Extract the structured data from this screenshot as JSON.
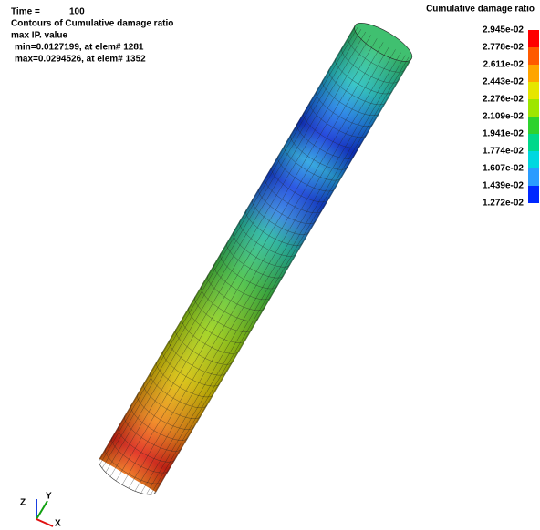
{
  "header": {
    "time_label": "Time =",
    "time_value": "100",
    "lines": [
      "Contours of Cumulative damage ratio",
      "max IP. value",
      "min=0.0127199, at elem# 1281",
      "max=0.0294526, at elem# 1352"
    ]
  },
  "legend": {
    "title": "Cumulative damage ratio",
    "labels": [
      "2.945e-02",
      "2.778e-02",
      "2.611e-02",
      "2.443e-02",
      "2.276e-02",
      "2.109e-02",
      "1.941e-02",
      "1.774e-02",
      "1.607e-02",
      "1.439e-02",
      "1.272e-02"
    ],
    "colors": [
      "#ff0000",
      "#ff5a00",
      "#ffa500",
      "#e6e600",
      "#9ee600",
      "#2ed22e",
      "#00d88a",
      "#00d8e0",
      "#2a9cff",
      "#0028ff"
    ]
  },
  "triad": {
    "z": "Z",
    "y": "Y",
    "x": "X"
  }
}
